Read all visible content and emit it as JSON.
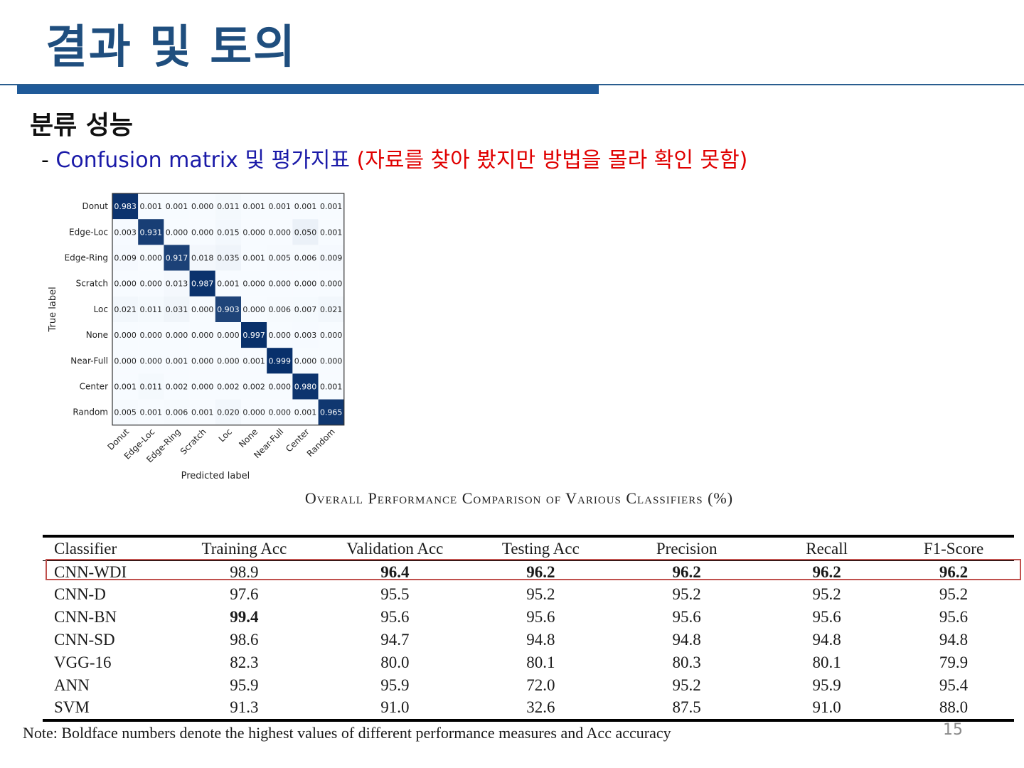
{
  "title": "결과 및 토의",
  "section": "분류 성능",
  "subtitle": {
    "dash": "- ",
    "blue_text": "Confusion matrix 및 평가지표 ",
    "red_text": "(자료를 찾아 봤지만 방법을 몰라 확인 못함)"
  },
  "confusion_matrix": {
    "ylabel": "True label",
    "xlabel": "Predicted label",
    "labels": [
      "Donut",
      "Edge-Loc",
      "Edge-Ring",
      "Scratch",
      "Loc",
      "None",
      "Near-Full",
      "Center",
      "Random"
    ],
    "cells": [
      [
        "0.983",
        "0.001",
        "0.001",
        "0.000",
        "0.011",
        "0.001",
        "0.001",
        "0.001",
        "0.001"
      ],
      [
        "0.003",
        "0.931",
        "0.000",
        "0.000",
        "0.015",
        "0.000",
        "0.000",
        "0.050",
        "0.001"
      ],
      [
        "0.009",
        "0.000",
        "0.917",
        "0.018",
        "0.035",
        "0.001",
        "0.005",
        "0.006",
        "0.009"
      ],
      [
        "0.000",
        "0.000",
        "0.013",
        "0.987",
        "0.001",
        "0.000",
        "0.000",
        "0.000",
        "0.000"
      ],
      [
        "0.021",
        "0.011",
        "0.031",
        "0.000",
        "0.903",
        "0.000",
        "0.006",
        "0.007",
        "0.021"
      ],
      [
        "0.000",
        "0.000",
        "0.000",
        "0.000",
        "0.000",
        "0.997",
        "0.000",
        "0.003",
        "0.000"
      ],
      [
        "0.000",
        "0.000",
        "0.001",
        "0.000",
        "0.000",
        "0.001",
        "0.999",
        "0.000",
        "0.000"
      ],
      [
        "0.001",
        "0.011",
        "0.002",
        "0.000",
        "0.002",
        "0.002",
        "0.000",
        "0.980",
        "0.001"
      ],
      [
        "0.005",
        "0.001",
        "0.006",
        "0.001",
        "0.020",
        "0.000",
        "0.000",
        "0.001",
        "0.965"
      ]
    ],
    "colors": {
      "high": "#08306b",
      "low": "#f7fbff",
      "grid": "#ffffff"
    }
  },
  "table": {
    "caption": "Overall Performance Comparison of Various Classifiers (%)",
    "headers": [
      "Classifier",
      "Training Acc",
      "Validation Acc",
      "Testing Acc",
      "Precision",
      "Recall",
      "F1-Score"
    ],
    "rows": [
      {
        "cells": [
          "CNN-WDI",
          "98.9",
          "96.4",
          "96.2",
          "96.2",
          "96.2",
          "96.2"
        ],
        "bold": [
          false,
          false,
          true,
          true,
          true,
          true,
          true
        ]
      },
      {
        "cells": [
          "CNN-D",
          "97.6",
          "95.5",
          "95.2",
          "95.2",
          "95.2",
          "95.2"
        ],
        "bold": [
          false,
          false,
          false,
          false,
          false,
          false,
          false
        ]
      },
      {
        "cells": [
          "CNN-BN",
          "99.4",
          "95.6",
          "95.6",
          "95.6",
          "95.6",
          "95.6"
        ],
        "bold": [
          false,
          true,
          false,
          false,
          false,
          false,
          false
        ]
      },
      {
        "cells": [
          "CNN-SD",
          "98.6",
          "94.7",
          "94.8",
          "94.8",
          "94.8",
          "94.8"
        ],
        "bold": [
          false,
          false,
          false,
          false,
          false,
          false,
          false
        ]
      },
      {
        "cells": [
          "VGG-16",
          "82.3",
          "80.0",
          "80.1",
          "80.3",
          "80.1",
          "79.9"
        ],
        "bold": [
          false,
          false,
          false,
          false,
          false,
          false,
          false
        ]
      },
      {
        "cells": [
          "ANN",
          "95.9",
          "95.9",
          "72.0",
          "95.2",
          "95.9",
          "95.4"
        ],
        "bold": [
          false,
          false,
          false,
          false,
          false,
          false,
          false
        ]
      },
      {
        "cells": [
          "SVM",
          "91.3",
          "91.0",
          "32.6",
          "87.5",
          "91.0",
          "88.0"
        ],
        "bold": [
          false,
          false,
          false,
          false,
          false,
          false,
          false
        ]
      }
    ],
    "highlight_color": "#c0504d"
  },
  "note": "Note: Boldface numbers denote the highest values of different performance measures and Acc accuracy",
  "page_number": "15",
  "colors": {
    "title": "#1f4e7e",
    "rule": "#1f5a99",
    "blue_text": "#1a1aa8",
    "red_text": "#e00000"
  }
}
